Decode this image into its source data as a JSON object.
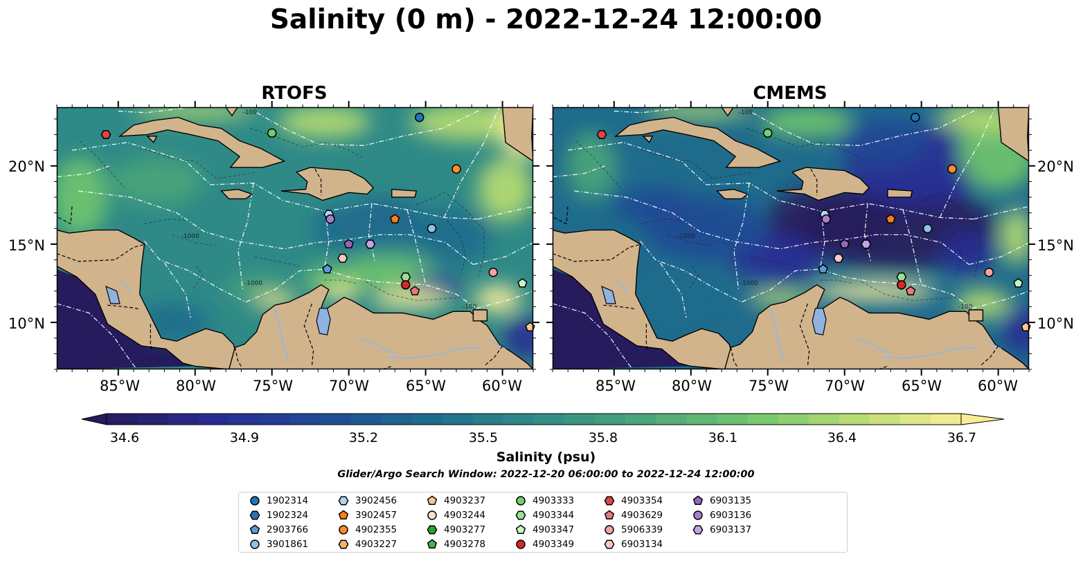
{
  "title": "Salinity (0 m) - 2022-12-24 12:00:00",
  "panels": [
    {
      "name": "RTOFS",
      "mode": "rtofs"
    },
    {
      "name": "CMEMS",
      "mode": "cmems"
    }
  ],
  "lat_ticks": [
    "20°N",
    "15°N",
    "10°N"
  ],
  "lon_ticks": [
    "85°W",
    "80°W",
    "75°W",
    "70°W",
    "65°W",
    "60°W"
  ],
  "colorbar": {
    "min": 34.6,
    "max": 36.7,
    "extend": "both",
    "ticks": [
      "34.6",
      "34.9",
      "35.2",
      "35.5",
      "35.8",
      "36.1",
      "36.4",
      "36.7"
    ],
    "colormap_stops": [
      "#261b5c",
      "#272c93",
      "#1f4a94",
      "#1f6b8c",
      "#2f8a87",
      "#4aa57a",
      "#6fc46e",
      "#b6db72",
      "#f9ee97"
    ],
    "label": "Salinity (psu)"
  },
  "contour_labels": [
    "-100",
    "-1000"
  ],
  "search_window": "Glider/Argo Search Window: 2022-12-20 06:00:00 to 2022-12-24 12:00:00",
  "legend": [
    {
      "id": "1902314",
      "marker": "circle",
      "color": "#1f77b4"
    },
    {
      "id": "1902324",
      "marker": "hexagon",
      "color": "#2f6fb5"
    },
    {
      "id": "2903766",
      "marker": "pentagon",
      "color": "#5b9bd5"
    },
    {
      "id": "3901861",
      "marker": "circle",
      "color": "#8fc1ea"
    },
    {
      "id": "3902456",
      "marker": "hexagon",
      "color": "#aed6f1"
    },
    {
      "id": "3902457",
      "marker": "pentagon",
      "color": "#ff7f0e"
    },
    {
      "id": "4902355",
      "marker": "circle",
      "color": "#ff8c2a"
    },
    {
      "id": "4903227",
      "marker": "hexagon",
      "color": "#ffb067"
    },
    {
      "id": "4903237",
      "marker": "pentagon",
      "color": "#ffc891"
    },
    {
      "id": "4903244",
      "marker": "circle",
      "color": "#ffe0c2"
    },
    {
      "id": "4903277",
      "marker": "hexagon",
      "color": "#2ca02c"
    },
    {
      "id": "4903278",
      "marker": "pentagon",
      "color": "#4caf50"
    },
    {
      "id": "4903333",
      "marker": "circle",
      "color": "#6fcf6f"
    },
    {
      "id": "4903344",
      "marker": "hexagon",
      "color": "#98e098"
    },
    {
      "id": "4903347",
      "marker": "pentagon",
      "color": "#c6f5c0"
    },
    {
      "id": "4903349",
      "marker": "circle",
      "color": "#d62728"
    },
    {
      "id": "4903354",
      "marker": "hexagon",
      "color": "#e04444"
    },
    {
      "id": "4903629",
      "marker": "pentagon",
      "color": "#e8797a"
    },
    {
      "id": "5906339",
      "marker": "circle",
      "color": "#f4a3a3"
    },
    {
      "id": "6903134",
      "marker": "hexagon",
      "color": "#fbc9c4"
    },
    {
      "id": "6903135",
      "marker": "pentagon",
      "color": "#9467bd"
    },
    {
      "id": "6903136",
      "marker": "circle",
      "color": "#a67fd0"
    },
    {
      "id": "6903137",
      "marker": "hexagon",
      "color": "#c5a3e6"
    }
  ],
  "floats": [
    {
      "id": "1902314",
      "lon": -65.4,
      "lat": 23.1
    },
    {
      "id": "4903333",
      "lon": -75.0,
      "lat": 22.1
    },
    {
      "id": "4903354",
      "lon": -85.8,
      "lat": 22.0
    },
    {
      "id": "4902355",
      "lon": -63.0,
      "lat": 19.8
    },
    {
      "id": "3902457",
      "lon": -67.0,
      "lat": 16.6
    },
    {
      "id": "3901861",
      "lon": -64.6,
      "lat": 16.0
    },
    {
      "id": "3902456",
      "lon": -71.3,
      "lat": 16.9
    },
    {
      "id": "6903136",
      "lon": -71.2,
      "lat": 16.6
    },
    {
      "id": "6903135",
      "lon": -70.0,
      "lat": 15.0
    },
    {
      "id": "6903137",
      "lon": -68.6,
      "lat": 15.0
    },
    {
      "id": "6903134",
      "lon": -70.4,
      "lat": 14.1
    },
    {
      "id": "2903766",
      "lon": -71.4,
      "lat": 13.4
    },
    {
      "id": "5906339",
      "lon": -60.6,
      "lat": 13.2
    },
    {
      "id": "4903344",
      "lon": -66.3,
      "lat": 12.9
    },
    {
      "id": "4903349",
      "lon": -66.3,
      "lat": 12.4
    },
    {
      "id": "4903629",
      "lon": -65.7,
      "lat": 12.0
    },
    {
      "id": "4903347",
      "lon": -58.7,
      "lat": 12.5
    },
    {
      "id": "4903237",
      "lon": -58.2,
      "lat": 9.7
    }
  ]
}
